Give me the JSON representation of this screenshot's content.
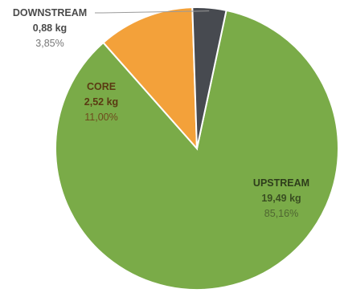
{
  "chart_data": {
    "type": "pie",
    "start_angle_deg": 12,
    "direction": "clockwise",
    "slice_border": "#ffffff",
    "slices": [
      {
        "label": "UPSTREAM",
        "value_kg": 19.49,
        "value_text": "19,49 kg",
        "percent": 85.16,
        "percent_text": "85,16%",
        "color": "#7aab48",
        "label_name_color": "#2e3d1b",
        "label_value_color": "#3a4f22",
        "label_pct_color": "#4f6631"
      },
      {
        "label": "CORE",
        "value_kg": 2.52,
        "value_text": "2,52 kg",
        "percent": 11.0,
        "percent_text": "11,00%",
        "color": "#f3a13a",
        "label_name_color": "#5a3a12",
        "label_value_color": "#5a3a12",
        "label_pct_color": "#6e4a1c"
      },
      {
        "label": "DOWNSTREAM",
        "value_kg": 0.88,
        "value_text": "0,88 kg",
        "percent": 3.85,
        "percent_text": "3,85%",
        "color": "#474a50",
        "label_name_color": "#4a4a4a",
        "label_value_color": "#4a4a4a",
        "label_pct_color": "#777777"
      }
    ]
  }
}
